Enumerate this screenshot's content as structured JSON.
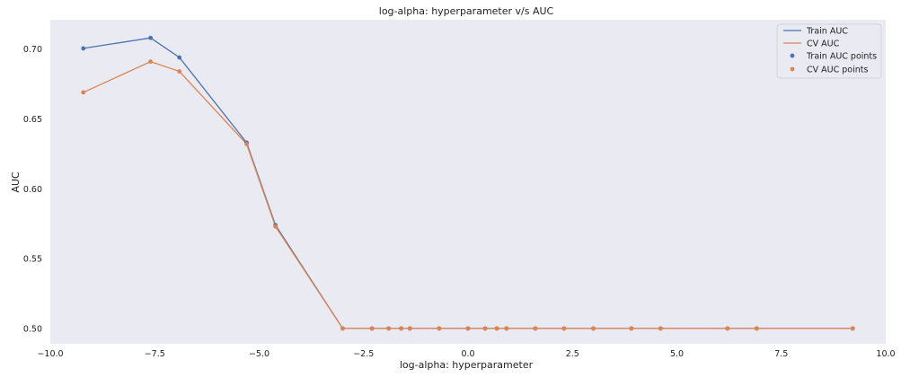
{
  "chart_data": {
    "type": "line",
    "title": "log-alpha: hyperparameter v/s AUC",
    "xlabel": "log-alpha: hyperparameter",
    "ylabel": "AUC",
    "xlim": [
      -10.0,
      10.0
    ],
    "ylim": [
      0.489,
      0.721
    ],
    "grid": false,
    "legend_position": "top-right",
    "x_ticks": [
      -10.0,
      -7.5,
      -5.0,
      -2.5,
      0.0,
      2.5,
      5.0,
      7.5,
      10.0
    ],
    "x_tick_labels": [
      "−10.0",
      "−7.5",
      "−5.0",
      "−2.5",
      "0.0",
      "2.5",
      "5.0",
      "7.5",
      "10.0"
    ],
    "y_ticks": [
      0.5,
      0.55,
      0.6,
      0.65,
      0.7
    ],
    "y_tick_labels": [
      "0.50",
      "0.55",
      "0.60",
      "0.65",
      "0.70"
    ],
    "colors": {
      "background": "#eaeaf2",
      "train": "#4c72b0",
      "cv": "#dd8452"
    },
    "x": [
      -9.21,
      -7.6,
      -6.91,
      -5.3,
      -4.61,
      -3.0,
      -2.3,
      -1.9,
      -1.6,
      -1.39,
      -0.69,
      0.0,
      0.41,
      0.69,
      0.92,
      1.61,
      2.3,
      3.0,
      3.91,
      4.61,
      6.21,
      6.91,
      9.21
    ],
    "series": [
      {
        "name": "Train AUC",
        "points_name": "CV AUC points",
        "color_key": "train",
        "values": [
          0.7005,
          0.708,
          0.694,
          0.633,
          0.574,
          0.5,
          0.5,
          0.5,
          0.5,
          0.5,
          0.5,
          0.5,
          0.5,
          0.5,
          0.5,
          0.5,
          0.5,
          0.5,
          0.5,
          0.5,
          0.5,
          0.5,
          0.5
        ]
      },
      {
        "name": "CV AUC",
        "color_key": "cv",
        "values": [
          0.669,
          0.691,
          0.684,
          0.632,
          0.573,
          0.5,
          0.5,
          0.5,
          0.5,
          0.5,
          0.5,
          0.5,
          0.5,
          0.5,
          0.5,
          0.5,
          0.5,
          0.5,
          0.5,
          0.5,
          0.5,
          0.5,
          0.5
        ]
      }
    ],
    "legend": [
      "Train AUC",
      "CV AUC",
      "Train AUC points",
      "CV AUC points"
    ]
  }
}
